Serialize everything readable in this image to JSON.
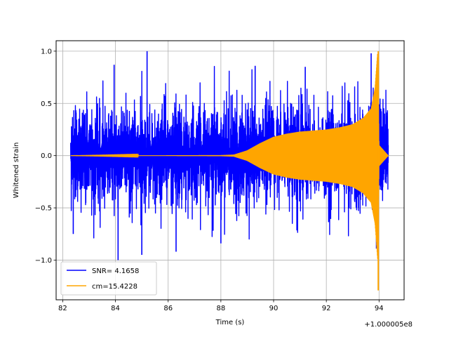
{
  "chart_data": {
    "type": "line",
    "title": "",
    "xlabel": "Time (s)",
    "ylabel": "Whitened strain",
    "x_offset_label": "+1.000005e8",
    "xlim": [
      81.75,
      94.95
    ],
    "ylim": [
      -1.38,
      1.1
    ],
    "x_ticks": [
      82,
      84,
      86,
      88,
      90,
      92,
      94
    ],
    "x_tick_labels": [
      "82",
      "84",
      "86",
      "88",
      "90",
      "92",
      "94"
    ],
    "y_ticks": [
      -1.0,
      -0.5,
      0.0,
      0.5,
      1.0
    ],
    "y_tick_labels": [
      "−1.0",
      "−0.5",
      "0.0",
      "0.5",
      "1.0"
    ],
    "grid": true,
    "legend_position": "lower-left",
    "series": [
      {
        "name": "SNR= 4.1658",
        "color": "#0000ff",
        "x_range": [
          82.3,
          94.35
        ],
        "typical_envelope": 0.45,
        "peaks": [
          {
            "x": 85.2,
            "y": 1.0
          },
          {
            "x": 83.95,
            "y": 0.87
          },
          {
            "x": 84.1,
            "y": -1.0
          },
          {
            "x": 85.0,
            "y": -0.95
          },
          {
            "x": 93.7,
            "y": 0.98
          },
          {
            "x": 91.2,
            "y": 0.85
          },
          {
            "x": 89.3,
            "y": 0.86
          },
          {
            "x": 82.4,
            "y": -0.75
          },
          {
            "x": 86.3,
            "y": -0.92
          },
          {
            "x": 88.0,
            "y": -0.84
          },
          {
            "x": 93.9,
            "y": -0.89
          }
        ]
      },
      {
        "name": "cm=15.4228",
        "color": "#ffa500",
        "x_range": [
          82.3,
          94.35
        ],
        "envelope_points": [
          [
            82.3,
            0.0
          ],
          [
            88.0,
            0.005
          ],
          [
            88.5,
            0.01
          ],
          [
            89.0,
            0.05
          ],
          [
            89.5,
            0.12
          ],
          [
            90.0,
            0.18
          ],
          [
            90.5,
            0.21
          ],
          [
            91.0,
            0.23
          ],
          [
            92.0,
            0.25
          ],
          [
            92.5,
            0.27
          ],
          [
            93.0,
            0.3
          ],
          [
            93.4,
            0.36
          ],
          [
            93.7,
            0.45
          ],
          [
            93.85,
            0.65
          ],
          [
            93.95,
            1.0
          ],
          [
            94.0,
            0.1
          ],
          [
            94.35,
            0.0
          ]
        ],
        "extremes": {
          "max": 1.0,
          "min": -1.29
        }
      }
    ]
  }
}
